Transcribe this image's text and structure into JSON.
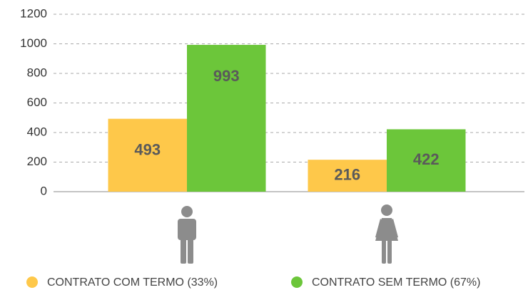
{
  "chart_data": {
    "type": "bar",
    "categories": [
      null,
      null
    ],
    "series": [
      {
        "name": "CONTRATO COM TERMO (33%)",
        "color": "#fec84a",
        "values": [
          493,
          216
        ]
      },
      {
        "name": "CONTRATO SEM TERMO (67%)",
        "color": "#6cc63a",
        "values": [
          993,
          422
        ]
      }
    ],
    "ylim": [
      0,
      1200
    ],
    "yticks": [
      0,
      200,
      400,
      600,
      800,
      1000,
      1200
    ],
    "grid": true
  }
}
